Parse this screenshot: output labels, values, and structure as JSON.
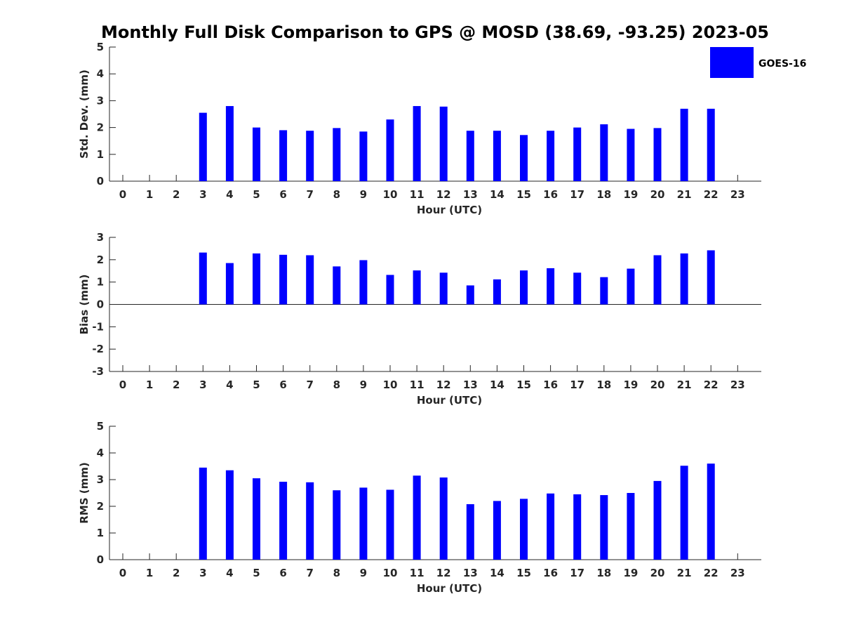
{
  "title": "Monthly Full Disk Comparison to GPS @ MOSD (38.69, -93.25) 2023-05",
  "legend": {
    "label": "GOES-16",
    "color": "#0000ff"
  },
  "chart_data": [
    {
      "type": "bar",
      "id": "std",
      "categories": [
        "0",
        "1",
        "2",
        "3",
        "4",
        "5",
        "6",
        "7",
        "8",
        "9",
        "10",
        "11",
        "12",
        "13",
        "14",
        "15",
        "16",
        "17",
        "18",
        "19",
        "20",
        "21",
        "22",
        "23"
      ],
      "series": [
        {
          "name": "GOES-16",
          "color": "#0000ff",
          "values": [
            null,
            null,
            null,
            2.55,
            2.8,
            2.0,
            1.9,
            1.88,
            1.98,
            1.85,
            2.3,
            2.8,
            2.78,
            1.88,
            1.88,
            1.72,
            1.88,
            2.0,
            2.12,
            1.95,
            1.98,
            2.7,
            2.7,
            null
          ]
        }
      ],
      "xlabel": "Hour (UTC)",
      "ylabel": "Std. Dev. (mm)",
      "ylim": [
        0,
        5
      ],
      "yticks": [
        "0",
        "1",
        "2",
        "3",
        "4",
        "5"
      ],
      "legend_position": "top-right"
    },
    {
      "type": "bar",
      "id": "bias",
      "categories": [
        "0",
        "1",
        "2",
        "3",
        "4",
        "5",
        "6",
        "7",
        "8",
        "9",
        "10",
        "11",
        "12",
        "13",
        "14",
        "15",
        "16",
        "17",
        "18",
        "19",
        "20",
        "21",
        "22",
        "23"
      ],
      "series": [
        {
          "name": "GOES-16",
          "color": "#0000ff",
          "values": [
            null,
            null,
            null,
            2.32,
            1.85,
            2.28,
            2.22,
            2.2,
            1.7,
            1.98,
            1.32,
            1.52,
            1.42,
            0.85,
            1.12,
            1.52,
            1.62,
            1.42,
            1.22,
            1.6,
            2.2,
            2.28,
            2.42,
            null
          ]
        }
      ],
      "xlabel": "Hour (UTC)",
      "ylabel": "Bias (mm)",
      "ylim": [
        -3,
        3
      ],
      "yticks": [
        "-3",
        "-2",
        "-1",
        "0",
        "1",
        "2",
        "3"
      ],
      "zero_line": true
    },
    {
      "type": "bar",
      "id": "rms",
      "categories": [
        "0",
        "1",
        "2",
        "3",
        "4",
        "5",
        "6",
        "7",
        "8",
        "9",
        "10",
        "11",
        "12",
        "13",
        "14",
        "15",
        "16",
        "17",
        "18",
        "19",
        "20",
        "21",
        "22",
        "23"
      ],
      "series": [
        {
          "name": "GOES-16",
          "color": "#0000ff",
          "values": [
            null,
            null,
            null,
            3.45,
            3.35,
            3.05,
            2.92,
            2.9,
            2.6,
            2.7,
            2.62,
            3.15,
            3.08,
            2.08,
            2.2,
            2.28,
            2.48,
            2.45,
            2.42,
            2.5,
            2.95,
            3.52,
            3.6,
            null
          ]
        }
      ],
      "xlabel": "Hour (UTC)",
      "ylabel": "RMS (mm)",
      "ylim": [
        0,
        5
      ],
      "yticks": [
        "0",
        "1",
        "2",
        "3",
        "4",
        "5"
      ]
    }
  ]
}
